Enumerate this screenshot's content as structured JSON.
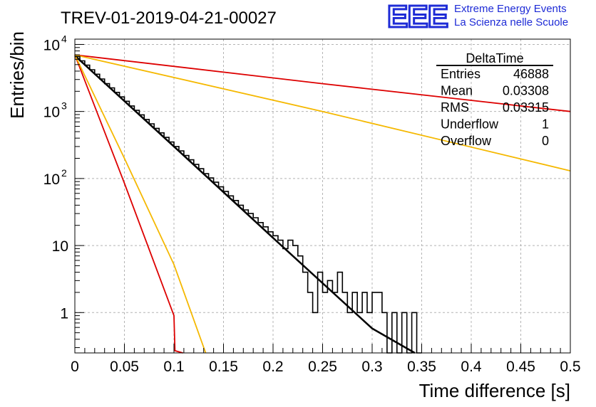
{
  "chart_data": {
    "type": "histogram",
    "title": "TREV-01-2019-04-21-00027",
    "xlabel": "Time difference [s]",
    "ylabel": "Entries/bin",
    "xlim": [
      0,
      0.5
    ],
    "ylim": [
      0.25,
      12000
    ],
    "yscale": "log",
    "grid": true,
    "x_ticks": [
      0,
      0.05,
      0.1,
      0.15,
      0.2,
      0.25,
      0.3,
      0.35,
      0.4,
      0.45,
      0.5
    ],
    "x_tick_labels": [
      "0",
      "0.05",
      "0.1",
      "0.15",
      "0.2",
      "0.25",
      "0.3",
      "0.35",
      "0.4",
      "0.45",
      "0.5"
    ],
    "y_ticks": [
      1,
      10,
      100,
      1000,
      10000
    ],
    "y_tick_labels": [
      {
        "base": "1",
        "exp": ""
      },
      {
        "base": "10",
        "exp": ""
      },
      {
        "base": "10",
        "exp": "2"
      },
      {
        "base": "10",
        "exp": "3"
      },
      {
        "base": "10",
        "exp": "4"
      }
    ],
    "histogram": {
      "name": "DeltaTime",
      "bin_width": 0.005,
      "color": "#000000",
      "bins": [
        {
          "x": 0.0,
          "y": 6600
        },
        {
          "x": 0.005,
          "y": 5700
        },
        {
          "x": 0.01,
          "y": 4900
        },
        {
          "x": 0.015,
          "y": 4200
        },
        {
          "x": 0.02,
          "y": 3600
        },
        {
          "x": 0.025,
          "y": 3050
        },
        {
          "x": 0.03,
          "y": 2600
        },
        {
          "x": 0.035,
          "y": 2250
        },
        {
          "x": 0.04,
          "y": 1930
        },
        {
          "x": 0.045,
          "y": 1650
        },
        {
          "x": 0.05,
          "y": 1420
        },
        {
          "x": 0.055,
          "y": 1210
        },
        {
          "x": 0.06,
          "y": 1040
        },
        {
          "x": 0.065,
          "y": 890
        },
        {
          "x": 0.07,
          "y": 760
        },
        {
          "x": 0.075,
          "y": 655
        },
        {
          "x": 0.08,
          "y": 560
        },
        {
          "x": 0.085,
          "y": 480
        },
        {
          "x": 0.09,
          "y": 410
        },
        {
          "x": 0.095,
          "y": 350
        },
        {
          "x": 0.1,
          "y": 300
        },
        {
          "x": 0.105,
          "y": 258
        },
        {
          "x": 0.11,
          "y": 220
        },
        {
          "x": 0.115,
          "y": 190
        },
        {
          "x": 0.12,
          "y": 162
        },
        {
          "x": 0.125,
          "y": 140
        },
        {
          "x": 0.13,
          "y": 118
        },
        {
          "x": 0.135,
          "y": 102
        },
        {
          "x": 0.14,
          "y": 88
        },
        {
          "x": 0.145,
          "y": 75
        },
        {
          "x": 0.15,
          "y": 64
        },
        {
          "x": 0.155,
          "y": 55
        },
        {
          "x": 0.16,
          "y": 47
        },
        {
          "x": 0.165,
          "y": 40
        },
        {
          "x": 0.17,
          "y": 34
        },
        {
          "x": 0.175,
          "y": 30
        },
        {
          "x": 0.18,
          "y": 26
        },
        {
          "x": 0.185,
          "y": 22
        },
        {
          "x": 0.19,
          "y": 19
        },
        {
          "x": 0.195,
          "y": 16
        },
        {
          "x": 0.2,
          "y": 14
        },
        {
          "x": 0.205,
          "y": 12
        },
        {
          "x": 0.21,
          "y": 9
        },
        {
          "x": 0.215,
          "y": 12
        },
        {
          "x": 0.22,
          "y": 10
        },
        {
          "x": 0.225,
          "y": 7
        },
        {
          "x": 0.23,
          "y": 4
        },
        {
          "x": 0.235,
          "y": 2
        },
        {
          "x": 0.24,
          "y": 1
        },
        {
          "x": 0.245,
          "y": 4
        },
        {
          "x": 0.25,
          "y": 2
        },
        {
          "x": 0.255,
          "y": 3
        },
        {
          "x": 0.26,
          "y": 2
        },
        {
          "x": 0.265,
          "y": 4
        },
        {
          "x": 0.27,
          "y": 2
        },
        {
          "x": 0.275,
          "y": 1
        },
        {
          "x": 0.28,
          "y": 2
        },
        {
          "x": 0.285,
          "y": 1
        },
        {
          "x": 0.29,
          "y": 2
        },
        {
          "x": 0.295,
          "y": 1
        },
        {
          "x": 0.3,
          "y": 2
        },
        {
          "x": 0.305,
          "y": 2
        },
        {
          "x": 0.31,
          "y": 1
        },
        {
          "x": 0.315,
          "y": 0
        },
        {
          "x": 0.32,
          "y": 1
        },
        {
          "x": 0.325,
          "y": 0
        },
        {
          "x": 0.33,
          "y": 1
        },
        {
          "x": 0.335,
          "y": 0
        },
        {
          "x": 0.34,
          "y": 1
        },
        {
          "x": 0.345,
          "y": 0
        }
      ]
    },
    "curves": [
      {
        "color": "#000000",
        "width": 2.5,
        "points": [
          [
            0,
            6800
          ],
          [
            0.1,
            300
          ],
          [
            0.2,
            13
          ],
          [
            0.3,
            0.58
          ],
          [
            0.343,
            0.25
          ]
        ]
      },
      {
        "color": "#dd0000",
        "width": 1.8,
        "points": [
          [
            0,
            7000
          ],
          [
            0.05,
            85
          ],
          [
            0.1,
            0.9
          ],
          [
            0.101,
            0.27
          ],
          [
            0.109,
            0.25
          ]
        ]
      },
      {
        "color": "#f5b800",
        "width": 1.8,
        "points": [
          [
            0,
            7000
          ],
          [
            0.05,
            200
          ],
          [
            0.1,
            5.2
          ],
          [
            0.132,
            0.25
          ]
        ]
      },
      {
        "color": "#dd0000",
        "width": 1.8,
        "points": [
          [
            0,
            7000
          ],
          [
            0.25,
            2600
          ],
          [
            0.5,
            1000
          ]
        ]
      },
      {
        "color": "#f5b800",
        "width": 1.8,
        "points": [
          [
            0,
            7000
          ],
          [
            0.25,
            1000
          ],
          [
            0.5,
            130
          ]
        ]
      }
    ],
    "stats_box": {
      "title": "DeltaTime",
      "rows": [
        {
          "label": "Entries",
          "value": "46888"
        },
        {
          "label": "Mean",
          "value": "0.03308"
        },
        {
          "label": "RMS",
          "value": "0.03315"
        },
        {
          "label": "Underflow",
          "value": "1"
        },
        {
          "label": "Overflow",
          "value": "0"
        }
      ]
    }
  },
  "logo": {
    "mark": "EEE",
    "line1": "Extreme Energy Events",
    "line2": "La Scienza nelle Scuole",
    "color": "#1e2bd6"
  }
}
